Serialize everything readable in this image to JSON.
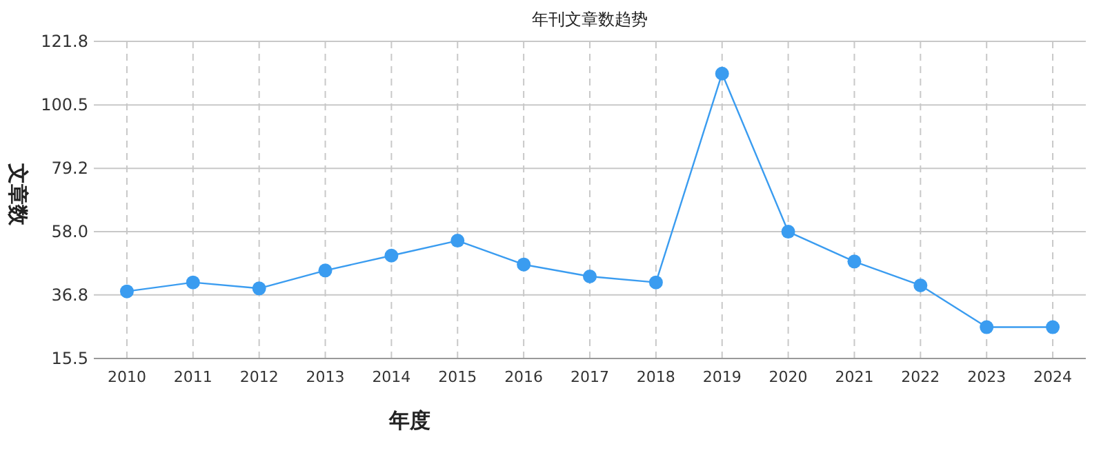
{
  "chart_data": {
    "type": "line",
    "title": "年刊文章数趋势",
    "xlabel": "年度",
    "ylabel": "文章数",
    "categories": [
      "2010",
      "2011",
      "2012",
      "2013",
      "2014",
      "2015",
      "2016",
      "2017",
      "2018",
      "2019",
      "2020",
      "2021",
      "2022",
      "2023",
      "2024"
    ],
    "series": [
      {
        "color": "#3a9cf0",
        "values": [
          38,
          41,
          39,
          45,
          50,
          55,
          47,
          43,
          41,
          111,
          58,
          48,
          40,
          26,
          26
        ]
      }
    ],
    "ylim": [
      15.5,
      121.8
    ],
    "yticks": [
      15.5,
      36.8,
      {
        "value": 58,
        "label": "58.0"
      },
      79.2,
      100.5,
      121.8
    ],
    "grid": true,
    "marker": "circle"
  }
}
